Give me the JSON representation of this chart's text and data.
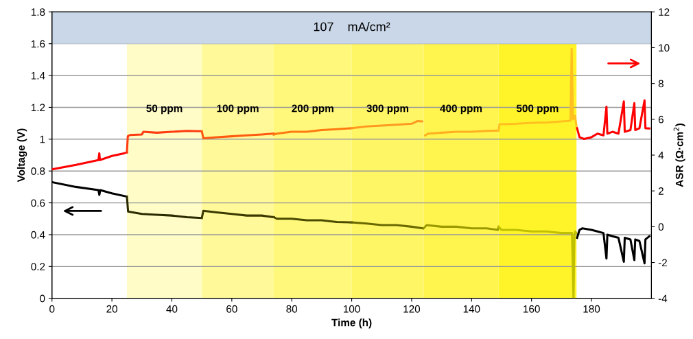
{
  "chart_data": {
    "type": "line",
    "xlabel": "Time (h)",
    "ylabel": "Voltage (V)",
    "y2label": "ASR (Ω·cm$^{2}$)",
    "xlim": [
      0,
      200
    ],
    "xticks": [
      0,
      20,
      40,
      60,
      80,
      100,
      120,
      140,
      160,
      180
    ],
    "ylim": [
      0,
      1.8
    ],
    "yticks": [
      0,
      0.2,
      0.4,
      0.6,
      0.8,
      1,
      1.2,
      1.4,
      1.6,
      1.8
    ],
    "y2lim": [
      -4,
      12
    ],
    "y2ticks": [
      -4,
      -2,
      0,
      2,
      4,
      6,
      8,
      10,
      12
    ],
    "grid": "y",
    "legend": false,
    "marker": "none",
    "line_style": "solid",
    "bands": [
      {
        "axis": "y",
        "from": 1.6,
        "to": 1.8,
        "label": "107    mA/cm²",
        "color": "#c9d7e8"
      },
      {
        "axis": "x",
        "from": 25,
        "to": 50,
        "label": "50 ppm",
        "color": "#fffcc8"
      },
      {
        "axis": "x",
        "from": 50,
        "to": 74,
        "label": "100 ppm",
        "color": "#fff999"
      },
      {
        "axis": "x",
        "from": 74,
        "to": 100,
        "label": "200 ppm",
        "color": "#fff87a"
      },
      {
        "axis": "x",
        "from": 100,
        "to": 124,
        "label": "300 ppm",
        "color": "#fff666"
      },
      {
        "axis": "x",
        "from": 124,
        "to": 149,
        "label": "400 ppm",
        "color": "#fff54e"
      },
      {
        "axis": "x",
        "from": 149,
        "to": 175,
        "label": "500 ppm",
        "color": "#fff42a"
      }
    ],
    "series": [
      {
        "axis": "y2",
        "color": "#ff0000",
        "x": [
          0,
          8,
          15.5,
          15.8,
          16,
          16.3,
          20,
          24,
          25
        ],
        "values": [
          3.2,
          3.45,
          3.72,
          4.1,
          3.72,
          3.74,
          3.95,
          4.1,
          4.15
        ]
      },
      {
        "axis": "y2",
        "color": "#ff3b10",
        "x": [
          25,
          25.3,
          26,
          30,
          30.5,
          35,
          40,
          45,
          49.8
        ],
        "values": [
          4.15,
          5.05,
          5.12,
          5.15,
          5.3,
          5.25,
          5.3,
          5.35,
          5.33
        ]
      },
      {
        "axis": "y2",
        "color": "#ff5a10",
        "x": [
          50,
          50.5,
          55,
          60,
          65,
          70,
          74
        ],
        "values": [
          5.33,
          4.94,
          5.0,
          5.05,
          5.1,
          5.15,
          5.2
        ]
      },
      {
        "axis": "y2",
        "color": "#ff7a10",
        "x": [
          74,
          75,
          80,
          85,
          90,
          95,
          100
        ],
        "values": [
          5.15,
          5.2,
          5.3,
          5.3,
          5.4,
          5.45,
          5.5
        ]
      },
      {
        "axis": "y2",
        "color": "#ff9a20",
        "x": [
          100,
          105,
          110,
          115,
          120,
          122,
          123.5
        ],
        "values": [
          5.5,
          5.6,
          5.65,
          5.7,
          5.75,
          5.9,
          5.88
        ]
      },
      {
        "axis": "y2",
        "color": "#ffb020",
        "x": [
          124.5,
          125.5,
          130,
          135,
          140,
          145,
          148.8
        ],
        "values": [
          5.1,
          5.2,
          5.25,
          5.3,
          5.3,
          5.35,
          5.37
        ]
      },
      {
        "axis": "y2",
        "color": "#ffc020",
        "x": [
          149,
          149.3,
          155,
          160,
          165,
          170,
          173,
          173.4,
          173.8,
          174.5,
          175
        ],
        "values": [
          5.37,
          5.72,
          5.75,
          5.8,
          5.82,
          5.88,
          5.92,
          9.94,
          6.0,
          6.2,
          5.6
        ]
      },
      {
        "axis": "y2",
        "color": "#ff0000",
        "x": [
          175.2,
          176,
          177.5,
          180,
          182,
          184,
          185,
          185.3,
          187,
          189,
          190.8,
          191.1,
          193,
          194.3,
          194.6,
          196,
          197.7,
          198,
          199.3
        ],
        "values": [
          5.5,
          5.0,
          4.9,
          5.0,
          5.2,
          5.1,
          6.7,
          5.2,
          5.3,
          5.2,
          7.0,
          5.3,
          5.4,
          6.9,
          5.4,
          5.5,
          7.06,
          5.5,
          5.49
        ]
      },
      {
        "axis": "y",
        "color": "#000000",
        "x": [
          0,
          8,
          15.5,
          15.8,
          16.1,
          20,
          24.8
        ],
        "values": [
          0.73,
          0.7,
          0.68,
          0.65,
          0.68,
          0.66,
          0.64
        ]
      },
      {
        "axis": "y",
        "color": "#2a2a00",
        "x": [
          25,
          25.4,
          27,
          30,
          35,
          40,
          45,
          49.8
        ],
        "values": [
          0.64,
          0.545,
          0.54,
          0.53,
          0.525,
          0.52,
          0.51,
          0.505
        ]
      },
      {
        "axis": "y",
        "color": "#3a3a00",
        "x": [
          50,
          50.5,
          55,
          60,
          65,
          70,
          74
        ],
        "values": [
          0.505,
          0.55,
          0.54,
          0.53,
          0.52,
          0.52,
          0.51
        ]
      },
      {
        "axis": "y",
        "color": "#4a4a00",
        "x": [
          74,
          75,
          80,
          85,
          90,
          95,
          100
        ],
        "values": [
          0.51,
          0.5,
          0.5,
          0.49,
          0.49,
          0.48,
          0.477
        ]
      },
      {
        "axis": "y",
        "color": "#6a6a00",
        "x": [
          100,
          105,
          110,
          115,
          120,
          123.8
        ],
        "values": [
          0.477,
          0.47,
          0.46,
          0.46,
          0.45,
          0.44
        ]
      },
      {
        "axis": "y",
        "color": "#9a9a00",
        "x": [
          124,
          125,
          130,
          135,
          140,
          145,
          148.8,
          149
        ],
        "values": [
          0.44,
          0.46,
          0.45,
          0.45,
          0.44,
          0.44,
          0.43,
          0.45
        ]
      },
      {
        "axis": "y",
        "color": "#c0c000",
        "x": [
          149,
          150,
          155,
          160,
          165,
          170,
          173.5,
          174,
          174.3,
          174.6,
          175
        ],
        "values": [
          0.45,
          0.43,
          0.43,
          0.42,
          0.42,
          0.41,
          0.41,
          0.0,
          0.4,
          0.42,
          0.41
        ]
      },
      {
        "axis": "y",
        "color": "#000000",
        "x": [
          175.2,
          176,
          177,
          180,
          182,
          184,
          185,
          185.3,
          187,
          189,
          190.8,
          191.1,
          193,
          194.3,
          194.6,
          196,
          197.7,
          198,
          199.3
        ],
        "values": [
          0.38,
          0.43,
          0.44,
          0.43,
          0.42,
          0.41,
          0.25,
          0.4,
          0.39,
          0.38,
          0.23,
          0.38,
          0.37,
          0.24,
          0.37,
          0.36,
          0.22,
          0.37,
          0.39
        ]
      }
    ]
  }
}
